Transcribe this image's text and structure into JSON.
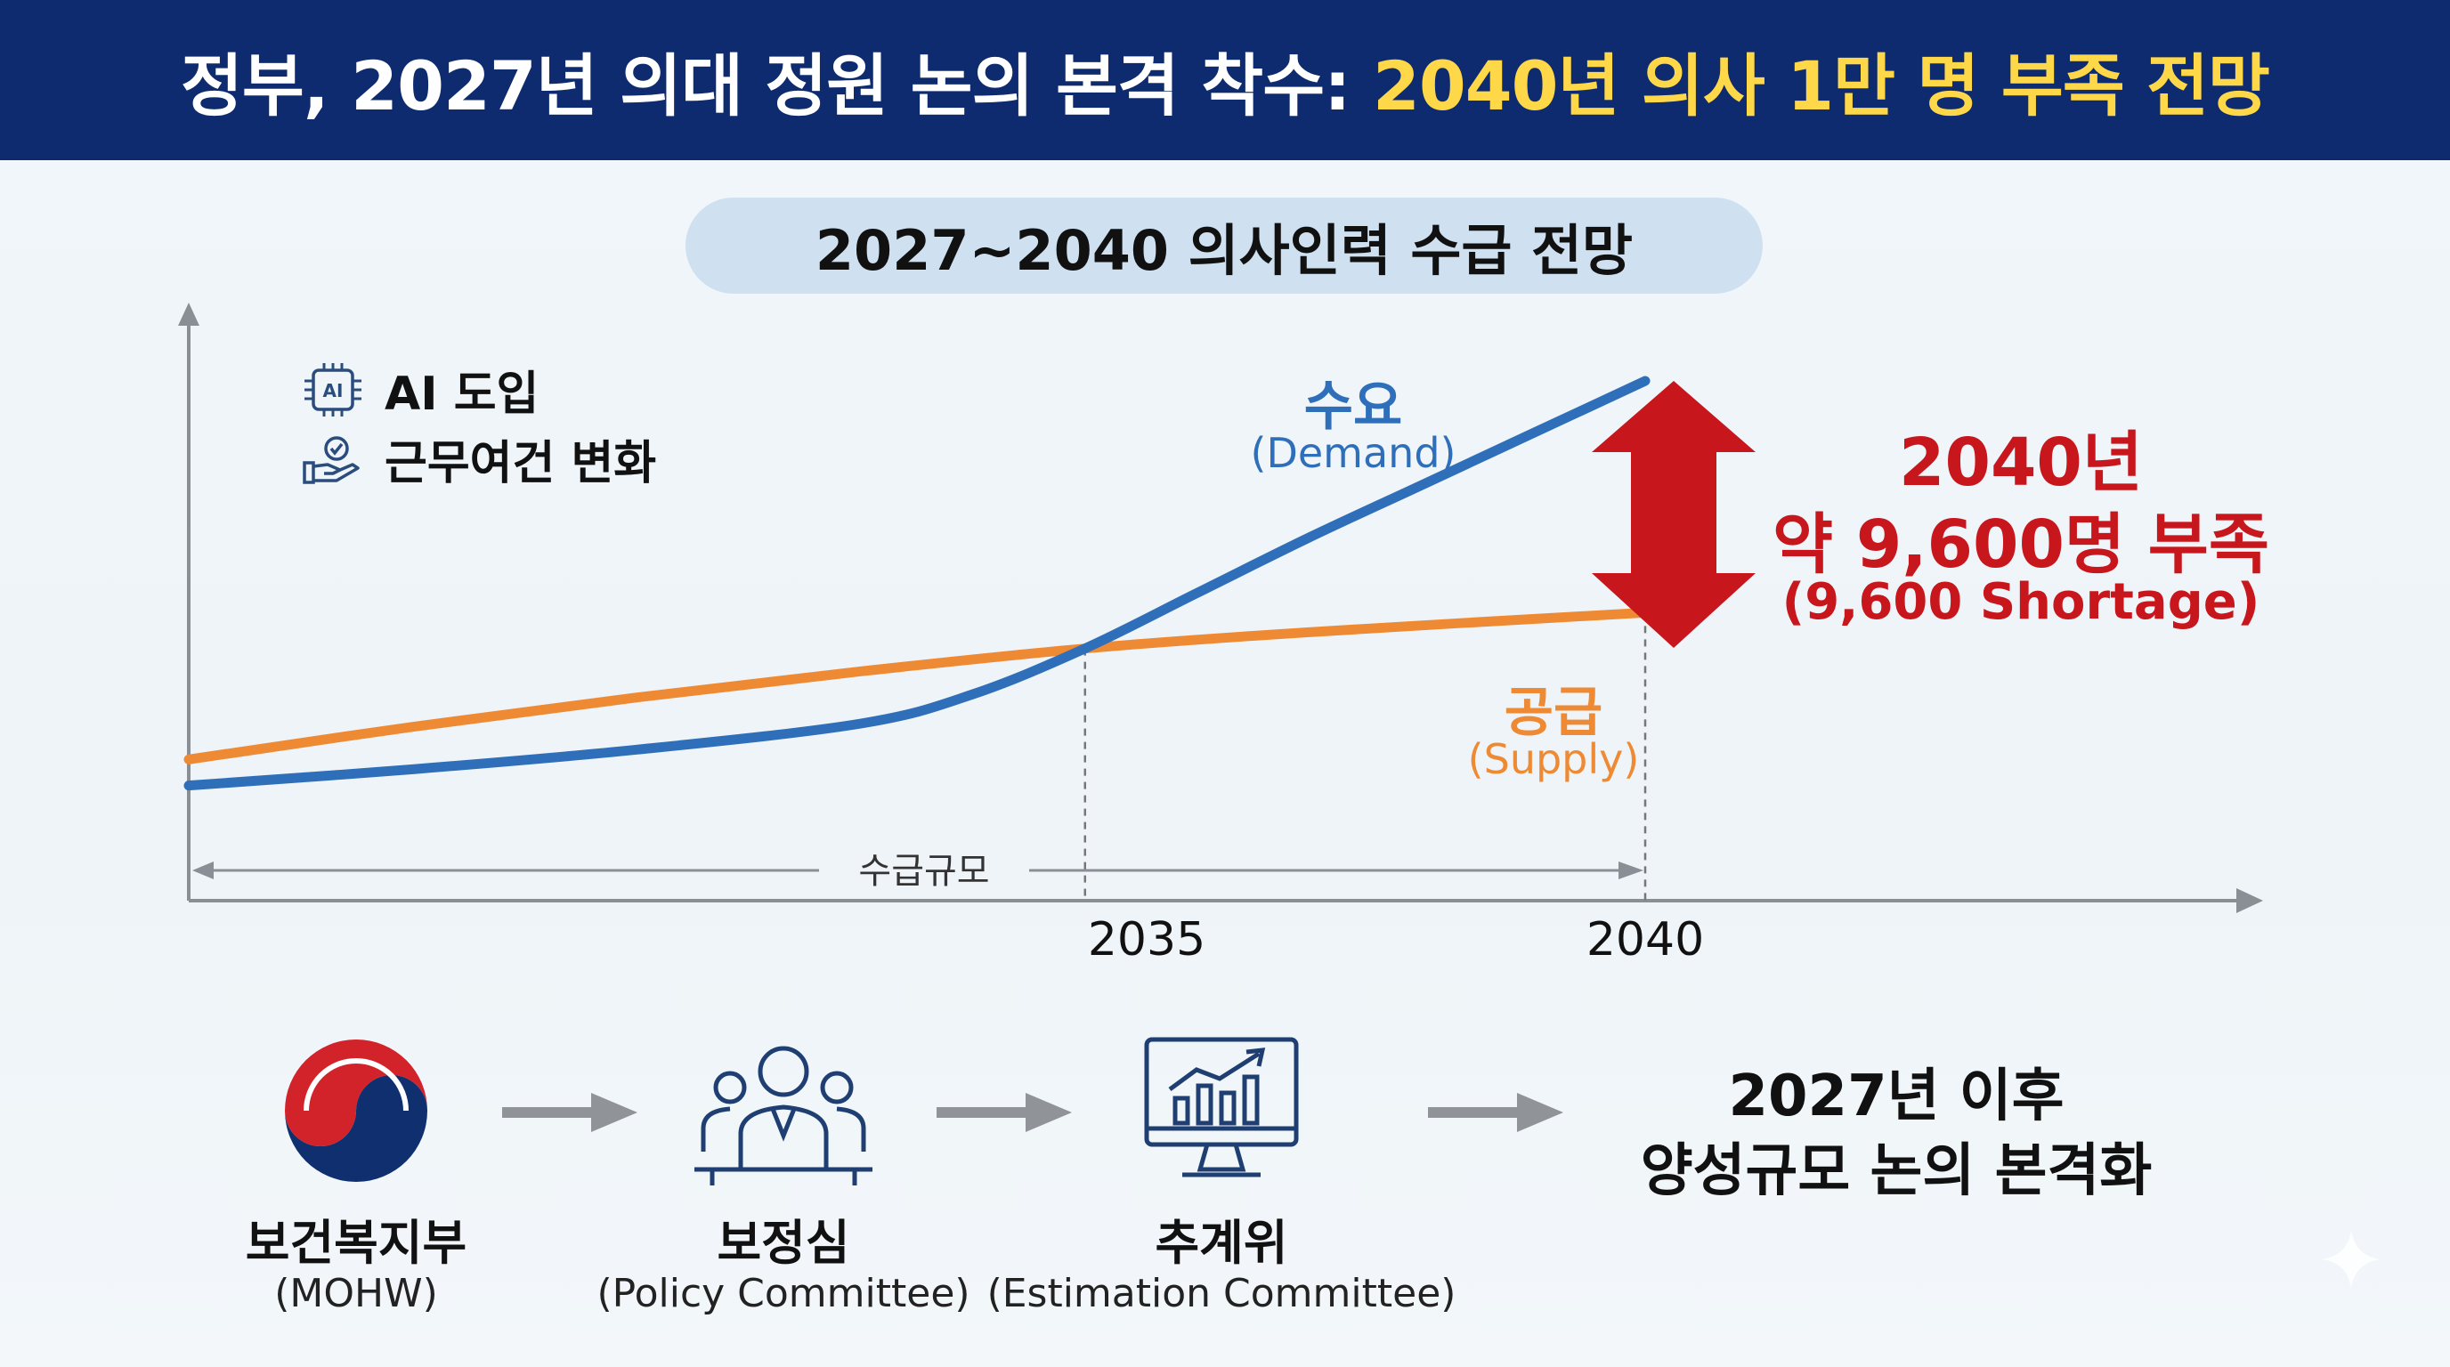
{
  "header": {
    "title_main": "정부, 2027년 의대 정원 논의 본격 착수:",
    "title_highlight": "2040년 의사 1만 명 부족 전망"
  },
  "subtitle": "2027~2040 의사인력 수급 전망",
  "factors": [
    {
      "icon": "ai-chip-icon",
      "label": "AI 도입"
    },
    {
      "icon": "hand-check-icon",
      "label": "근무여건 변화"
    }
  ],
  "series_labels": {
    "demand_ko": "수요",
    "demand_en": "(Demand)",
    "supply_ko": "공급",
    "supply_en": "(Supply)"
  },
  "gap_callout": {
    "year": "2040년",
    "amount": "약 9,600명 부족",
    "english": "(9,600 Shortage)"
  },
  "span_label": "수급규모",
  "chart_data": {
    "type": "line",
    "xlim": [
      2027,
      2040
    ],
    "x_ticks": [
      "2035",
      "2040"
    ],
    "series": [
      {
        "name": "수요 (Demand)",
        "color": "#2f6fba",
        "points": [
          [
            2027,
            0.08
          ],
          [
            2029,
            0.13
          ],
          [
            2031,
            0.19
          ],
          [
            2033,
            0.27
          ],
          [
            2034,
            0.36
          ],
          [
            2035,
            0.5
          ],
          [
            2036,
            0.67
          ],
          [
            2037,
            0.84
          ],
          [
            2038,
            1.0
          ],
          [
            2039,
            1.16
          ],
          [
            2040,
            1.32
          ]
        ]
      },
      {
        "name": "공급 (Supply)",
        "color": "#ef8a34",
        "points": [
          [
            2027,
            0.16
          ],
          [
            2029,
            0.26
          ],
          [
            2031,
            0.35
          ],
          [
            2033,
            0.43
          ],
          [
            2035,
            0.5
          ],
          [
            2037,
            0.55
          ],
          [
            2040,
            0.61
          ]
        ]
      }
    ],
    "shortage_2040": 9600,
    "colors": {
      "demand": "#2f6fba",
      "supply": "#ef8a34",
      "gap_arrow": "#c8161d",
      "gap_text": "#c8161d"
    }
  },
  "flow": [
    {
      "title": "보건복지부",
      "sub": "(MOHW)"
    },
    {
      "title": "보정심",
      "sub": "(Policy Committee)"
    },
    {
      "title": "추계위",
      "sub": "(Estimation Committee)"
    }
  ],
  "outcome": {
    "line1": "2027년 이후",
    "line2": "양성규모 논의 본격화"
  }
}
